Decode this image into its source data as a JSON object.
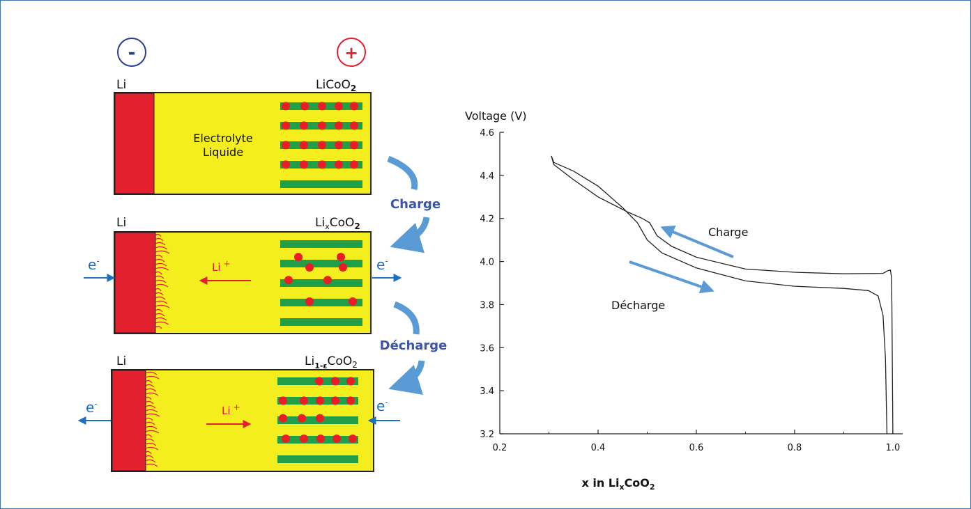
{
  "colors": {
    "frame": "#3f74b5",
    "electrolyte": "#f5ee1f",
    "lithium_anode": "#e3202d",
    "cathode_layer": "#1e9f48",
    "lithium_ion_dot": "#ec1c24",
    "negative_terminal": "#2a3c8f",
    "positive_terminal": "#e3202d",
    "process_arrow": "#5b9bd5",
    "process_label": "#3a56a8",
    "electron_arrow": "#1f6fc0",
    "ion_arrow": "#e3202d",
    "curve": "#222222"
  },
  "terminals": {
    "negative": "-",
    "positive": "+"
  },
  "cells": [
    {
      "state": "initial",
      "anode_label": "Li",
      "cathode_label": "LiCoO",
      "cathode_subscript": "2",
      "electrolyte_line1": "Electrolyte",
      "electrolyte_line2": "Liquide",
      "dendrites": false
    },
    {
      "state": "charging",
      "anode_label": "Li",
      "cathode_label_pre": "Li",
      "cathode_label_sub": "x",
      "cathode_label_mid": "CoO",
      "cathode_label_sub2": "2",
      "electron_symbol": "e",
      "electron_charge": "-",
      "ion_symbol": "Li",
      "ion_charge": "+",
      "dendrites": true
    },
    {
      "state": "discharging",
      "anode_label": "Li",
      "cathode_label_pre": "Li",
      "cathode_label_sub": "1-ε",
      "cathode_label_mid": "CoO",
      "cathode_label_sub2": "2",
      "electron_symbol": "e",
      "electron_charge": "-",
      "ion_symbol": "Li",
      "ion_charge": "+",
      "dendrites": true
    }
  ],
  "process_labels": {
    "charge": "Charge",
    "discharge": "Décharge"
  },
  "chart_data": {
    "type": "line",
    "title": "",
    "ylabel": "Voltage (V)",
    "xlabel_pre": "x in Li",
    "xlabel_sub": "x",
    "xlabel_post": "CoO",
    "xlabel_sub2": "2",
    "xlim": [
      0.2,
      1.02
    ],
    "ylim": [
      3.2,
      4.6
    ],
    "x_ticks": [
      "0.2",
      "0.4",
      "0.6",
      "0.8",
      "1.0"
    ],
    "y_ticks": [
      "3.2",
      "3.4",
      "3.6",
      "3.8",
      "4.0",
      "4.2",
      "4.4",
      "4.6"
    ],
    "grid": false,
    "series": [
      {
        "role": "charge",
        "points": [
          [
            1.0,
            3.2
          ],
          [
            0.999,
            3.5
          ],
          [
            0.998,
            3.8
          ],
          [
            0.997,
            3.93
          ],
          [
            0.995,
            3.96
          ],
          [
            0.99,
            3.958
          ],
          [
            0.98,
            3.945
          ],
          [
            0.9,
            3.943
          ],
          [
            0.8,
            3.95
          ],
          [
            0.7,
            3.965
          ],
          [
            0.6,
            4.02
          ],
          [
            0.55,
            4.07
          ],
          [
            0.52,
            4.12
          ],
          [
            0.505,
            4.18
          ],
          [
            0.49,
            4.2
          ],
          [
            0.46,
            4.23
          ],
          [
            0.4,
            4.3
          ],
          [
            0.35,
            4.38
          ],
          [
            0.31,
            4.45
          ],
          [
            0.305,
            4.49
          ]
        ]
      },
      {
        "role": "discharge",
        "points": [
          [
            0.305,
            4.49
          ],
          [
            0.31,
            4.46
          ],
          [
            0.35,
            4.42
          ],
          [
            0.4,
            4.35
          ],
          [
            0.45,
            4.25
          ],
          [
            0.48,
            4.18
          ],
          [
            0.5,
            4.1
          ],
          [
            0.53,
            4.04
          ],
          [
            0.6,
            3.97
          ],
          [
            0.7,
            3.91
          ],
          [
            0.8,
            3.885
          ],
          [
            0.9,
            3.875
          ],
          [
            0.95,
            3.865
          ],
          [
            0.97,
            3.84
          ],
          [
            0.98,
            3.75
          ],
          [
            0.985,
            3.55
          ],
          [
            0.988,
            3.2
          ]
        ]
      }
    ],
    "annotations": {
      "charge": "Charge",
      "discharge": "Décharge"
    }
  }
}
